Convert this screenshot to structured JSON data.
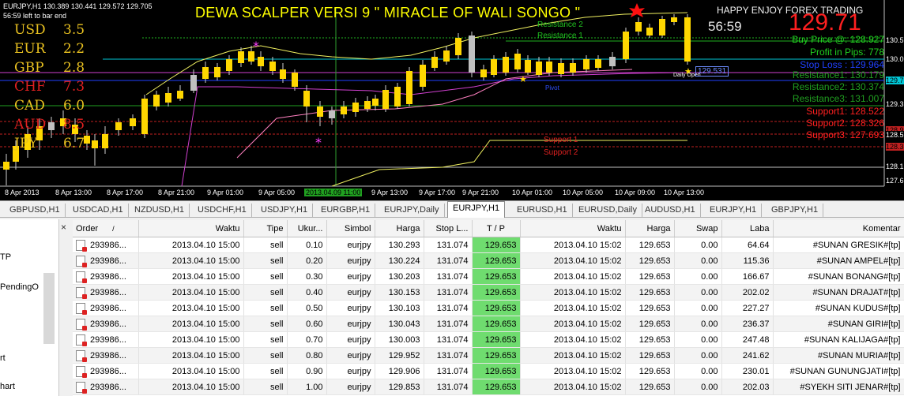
{
  "chart": {
    "symbol_line": "EURJPY,H1  130.389 130.441 129.572 129.705",
    "countdown_note": "56:59 left to bar end",
    "title": "DEWA SCALPER VERSI 9 \" MIRACLE OF WALI SONGO \"",
    "brand": "HAPPY ENJOY FOREX TRADING",
    "big_price": "129.71",
    "timer": "56:59",
    "buy_price": "Buy Price @: 128.927",
    "profit_pips": "Profit in Pips: 778",
    "stop_loss": "Stop Loss : 129.964",
    "resistance1": "Resistance1: 130.179",
    "resistance2": "Resistance2: 130.374",
    "resistance3": "Resistance3: 131.007",
    "support1": "Support1: 128.522",
    "support2": "Support2: 128.326",
    "support3": "Support3: 127.693",
    "line_labels": {
      "res2": "Resistance 2",
      "res1": "Resistance 1",
      "sup1": "Support 1",
      "sup2": "Support 2",
      "daily_open": "Daily Open",
      "price_box": "129.531",
      "pivot": "Pivot"
    },
    "strength": [
      {
        "cur": "USD",
        "val": "3.5",
        "color": "#e8c020"
      },
      {
        "cur": "EUR",
        "val": "2.2",
        "color": "#e8c020"
      },
      {
        "cur": "GBP",
        "val": "2.8",
        "color": "#e8c020"
      },
      {
        "cur": "CHF",
        "val": "7.3",
        "color": "#e02020"
      },
      {
        "cur": "CAD",
        "val": "6.0",
        "color": "#e8c020"
      },
      {
        "cur": "AUD",
        "val": "8.5",
        "color": "#e02020"
      },
      {
        "cur": "JPY",
        "val": "6.7",
        "color": "#e8c020"
      }
    ],
    "time_labels": [
      "8 Apr 2013",
      "8 Apr 13:00",
      "8 Apr 17:00",
      "8 Apr 21:00",
      "9 Apr 01:00",
      "9 Apr 05:00",
      "2013.04.09 11:00",
      "9 Apr 13:00",
      "9 Apr 17:00",
      "9 Apr 21:00",
      "10 Apr 01:00",
      "10 Apr 05:00",
      "10 Apr 09:00",
      "10 Apr 13:00"
    ],
    "price_labels": [
      "130.575",
      "130.0",
      "129.71",
      "129.3",
      "128.9",
      "128.5",
      "128.3",
      "128.1",
      "127.6"
    ]
  },
  "tabs": [
    "GBPUSD,H1",
    "USDCAD,H1",
    "NZDUSD,H1",
    "USDCHF,H1",
    "USDJPY,H1",
    "EURGBP,H1",
    "EURJPY,Daily",
    "EURJPY,H1",
    "EURUSD,H1",
    "EURUSD,Daily",
    "AUDUSD,H1",
    "EURJPY,H1",
    "GBPJPY,H1"
  ],
  "active_tab": 7,
  "navigator": {
    "close_glyph": "×",
    "items": [
      "TP",
      "PendingO",
      "rt",
      "hart"
    ]
  },
  "orders": {
    "columns": [
      "Order",
      "Waktu",
      "Tipe",
      "Ukur...",
      "Simbol",
      "Harga",
      "Stop L...",
      "T / P",
      "Waktu",
      "Harga",
      "Swap",
      "Laba",
      "Komentar"
    ],
    "sort_glyph": "/",
    "rows": [
      [
        "293986...",
        "2013.04.10 15:00",
        "sell",
        "0.10",
        "eurjpy",
        "130.293",
        "131.074",
        "129.653",
        "2013.04.10 15:02",
        "129.653",
        "0.00",
        "64.64",
        "#SUNAN GRESIK#[tp]"
      ],
      [
        "293986...",
        "2013.04.10 15:00",
        "sell",
        "0.20",
        "eurjpy",
        "130.224",
        "131.074",
        "129.653",
        "2013.04.10 15:02",
        "129.653",
        "0.00",
        "115.36",
        "#SUNAN AMPEL#[tp]"
      ],
      [
        "293986...",
        "2013.04.10 15:00",
        "sell",
        "0.30",
        "eurjpy",
        "130.203",
        "131.074",
        "129.653",
        "2013.04.10 15:02",
        "129.653",
        "0.00",
        "166.67",
        "#SUNAN BONANG#[tp]"
      ],
      [
        "293986...",
        "2013.04.10 15:00",
        "sell",
        "0.40",
        "eurjpy",
        "130.153",
        "131.074",
        "129.653",
        "2013.04.10 15:02",
        "129.653",
        "0.00",
        "202.02",
        "#SUNAN DRAJAT#[tp]"
      ],
      [
        "293986...",
        "2013.04.10 15:00",
        "sell",
        "0.50",
        "eurjpy",
        "130.103",
        "131.074",
        "129.653",
        "2013.04.10 15:02",
        "129.653",
        "0.00",
        "227.27",
        "#SUNAN KUDUS#[tp]"
      ],
      [
        "293986...",
        "2013.04.10 15:00",
        "sell",
        "0.60",
        "eurjpy",
        "130.043",
        "131.074",
        "129.653",
        "2013.04.10 15:02",
        "129.653",
        "0.00",
        "236.37",
        "#SUNAN GIRI#[tp]"
      ],
      [
        "293986...",
        "2013.04.10 15:00",
        "sell",
        "0.70",
        "eurjpy",
        "130.003",
        "131.074",
        "129.653",
        "2013.04.10 15:02",
        "129.653",
        "0.00",
        "247.48",
        "#SUNAN KALIJAGA#[tp]"
      ],
      [
        "293986...",
        "2013.04.10 15:00",
        "sell",
        "0.80",
        "eurjpy",
        "129.952",
        "131.074",
        "129.653",
        "2013.04.10 15:02",
        "129.653",
        "0.00",
        "241.62",
        "#SUNAN MURIA#[tp]"
      ],
      [
        "293986...",
        "2013.04.10 15:00",
        "sell",
        "0.90",
        "eurjpy",
        "129.906",
        "131.074",
        "129.653",
        "2013.04.10 15:02",
        "129.653",
        "0.00",
        "230.01",
        "#SUNAN GUNUNGJATI#[tp]"
      ],
      [
        "293986...",
        "2013.04.10 15:00",
        "sell",
        "1.00",
        "eurjpy",
        "129.853",
        "131.074",
        "129.653",
        "2013.04.10 15:02",
        "129.653",
        "0.00",
        "202.03",
        "#SYEKH SITI JENAR#[tp]"
      ]
    ]
  }
}
